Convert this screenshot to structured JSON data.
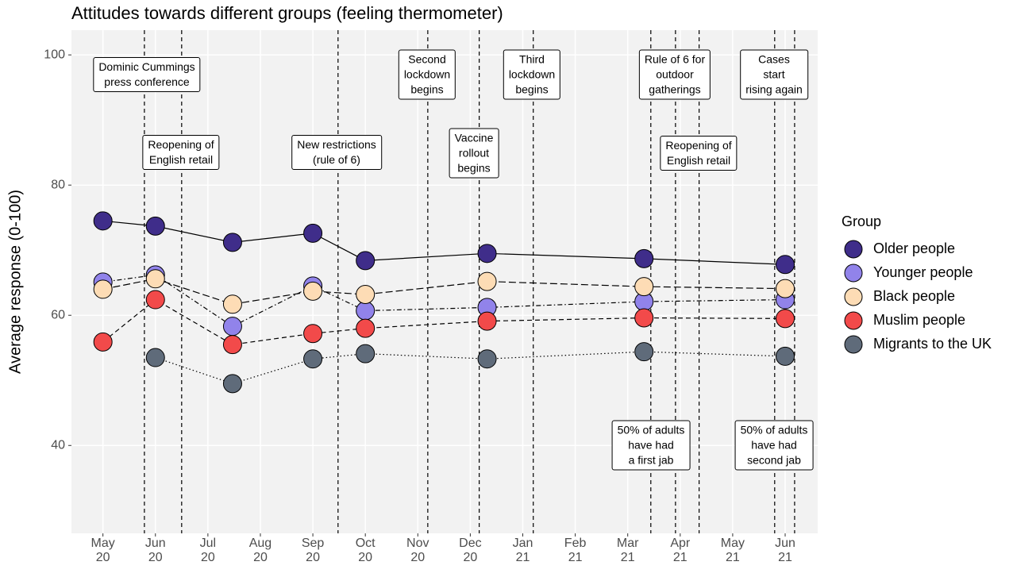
{
  "chart_data": {
    "type": "line",
    "title": "Attitudes towards different groups (feeling thermometer)",
    "y_label": "Average response (0-100)",
    "legend_title": "Group",
    "legend": "right",
    "grid": true,
    "x": [
      0,
      1,
      2.47,
      4,
      5,
      7.32,
      10.31,
      13
    ],
    "xlim": [
      -0.6,
      13.62
    ],
    "xticks": [
      {
        "value": 0,
        "label": "May\n20"
      },
      {
        "value": 1,
        "label": "Jun\n20"
      },
      {
        "value": 2,
        "label": "Jul\n20"
      },
      {
        "value": 3,
        "label": "Aug\n20"
      },
      {
        "value": 4,
        "label": "Sep\n20"
      },
      {
        "value": 5,
        "label": "Oct\n20"
      },
      {
        "value": 6,
        "label": "Nov\n20"
      },
      {
        "value": 7,
        "label": "Dec\n20"
      },
      {
        "value": 8,
        "label": "Jan\n21"
      },
      {
        "value": 9,
        "label": "Feb\n21"
      },
      {
        "value": 10,
        "label": "Mar\n21"
      },
      {
        "value": 11,
        "label": "Apr\n21"
      },
      {
        "value": 12,
        "label": "May\n21"
      },
      {
        "value": 13,
        "label": "Jun\n21"
      }
    ],
    "ylim": [
      26.5,
      103.8
    ],
    "yticks": [
      40,
      60,
      80,
      100
    ],
    "event_lines": [
      0.79,
      1.5,
      4.48,
      6.19,
      7.17,
      8.2,
      10.44,
      10.91,
      11.36,
      12.8,
      13.18
    ],
    "annotations": [
      "Dominic Cummings\npress conference",
      "Reopening of\nEnglish retail",
      "New restrictions\n(rule of 6)",
      "Second\nlockdown\nbegins",
      "Vaccine\nrollout\nbegins",
      "Third\nlockdown\nbegins",
      "Rule of 6 for\noutdoor\ngatherings",
      "Reopening of\nEnglish retail",
      "Cases\nstart\nrising again",
      "50% of adults\nhave had\na first jab",
      "50% of adults\nhave had\nsecond jab"
    ],
    "series": [
      {
        "name": "Older people",
        "color": "#3f2d8a",
        "dash": "solid",
        "values": [
          74.5,
          73.7,
          71.2,
          72.6,
          68.4,
          69.5,
          68.7,
          67.8
        ]
      },
      {
        "name": "Younger people",
        "color": "#9183ea",
        "dash": "dotdash",
        "values": [
          65.1,
          66.2,
          58.3,
          64.5,
          60.7,
          61.2,
          62.1,
          62.4
        ]
      },
      {
        "name": "Black people",
        "color": "#fddcb5",
        "dash": "longdash",
        "values": [
          64.0,
          65.6,
          61.7,
          63.7,
          63.2,
          65.2,
          64.4,
          64.1
        ]
      },
      {
        "name": "Muslim people",
        "color": "#f24a4a",
        "dash": "dashed",
        "values": [
          55.9,
          62.4,
          55.5,
          57.2,
          58.0,
          59.1,
          59.6,
          59.5
        ]
      },
      {
        "name": "Migrants to the UK",
        "color": "#5f6b7a",
        "dash": "dotted",
        "values": [
          null,
          53.5,
          49.5,
          53.3,
          54.1,
          53.3,
          54.4,
          53.7
        ]
      }
    ]
  }
}
